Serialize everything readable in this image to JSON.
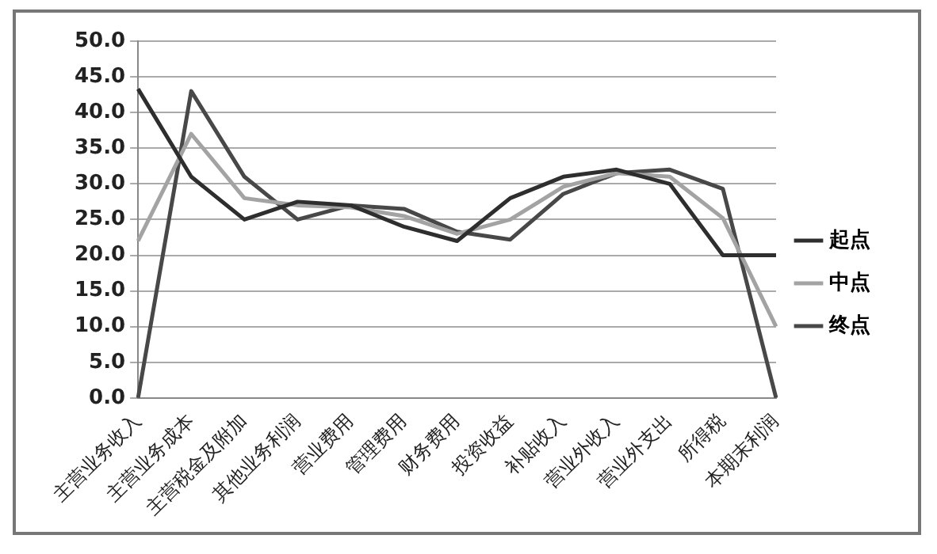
{
  "chart_data": {
    "type": "line",
    "categories": [
      "主营业务收入",
      "主营业务成本",
      "主营税金及附加",
      "其他业务利润",
      "营业费用",
      "管理费用",
      "财务费用",
      "投资收益",
      "补贴收入",
      "营业外收入",
      "营业外支出",
      "所得税",
      "本期末利润"
    ],
    "series": [
      {
        "name": "起点",
        "color": "#2e2e2e",
        "values": [
          43.3,
          31,
          25,
          27.5,
          27,
          24,
          22,
          28,
          31,
          32,
          30,
          20,
          20
        ]
      },
      {
        "name": "中点",
        "color": "#a3a3a3",
        "values": [
          22,
          37,
          28,
          27,
          26.7,
          25.5,
          23,
          25,
          29.6,
          31.5,
          31,
          25.2,
          10
        ]
      },
      {
        "name": "终点",
        "color": "#484848",
        "values": [
          0,
          43,
          31,
          25,
          27,
          26.5,
          23.3,
          22.2,
          28.6,
          31.5,
          32,
          29.3,
          0
        ]
      }
    ],
    "ylim": [
      0,
      50
    ],
    "yticks": [
      {
        "value": 0,
        "label": "0.0"
      },
      {
        "value": 5,
        "label": "5.0"
      },
      {
        "value": 10,
        "label": "10.0"
      },
      {
        "value": 15,
        "label": "15.0"
      },
      {
        "value": 20,
        "label": "20.0"
      },
      {
        "value": 25,
        "label": "25.0"
      },
      {
        "value": 30,
        "label": "30.0"
      },
      {
        "value": 35,
        "label": "35.0"
      },
      {
        "value": 40,
        "label": "40.0"
      },
      {
        "value": 45,
        "label": "45.0"
      },
      {
        "value": 50,
        "label": "50.0"
      }
    ],
    "grid": "y",
    "legend": "right",
    "marker": "none",
    "line_style": "solid"
  }
}
